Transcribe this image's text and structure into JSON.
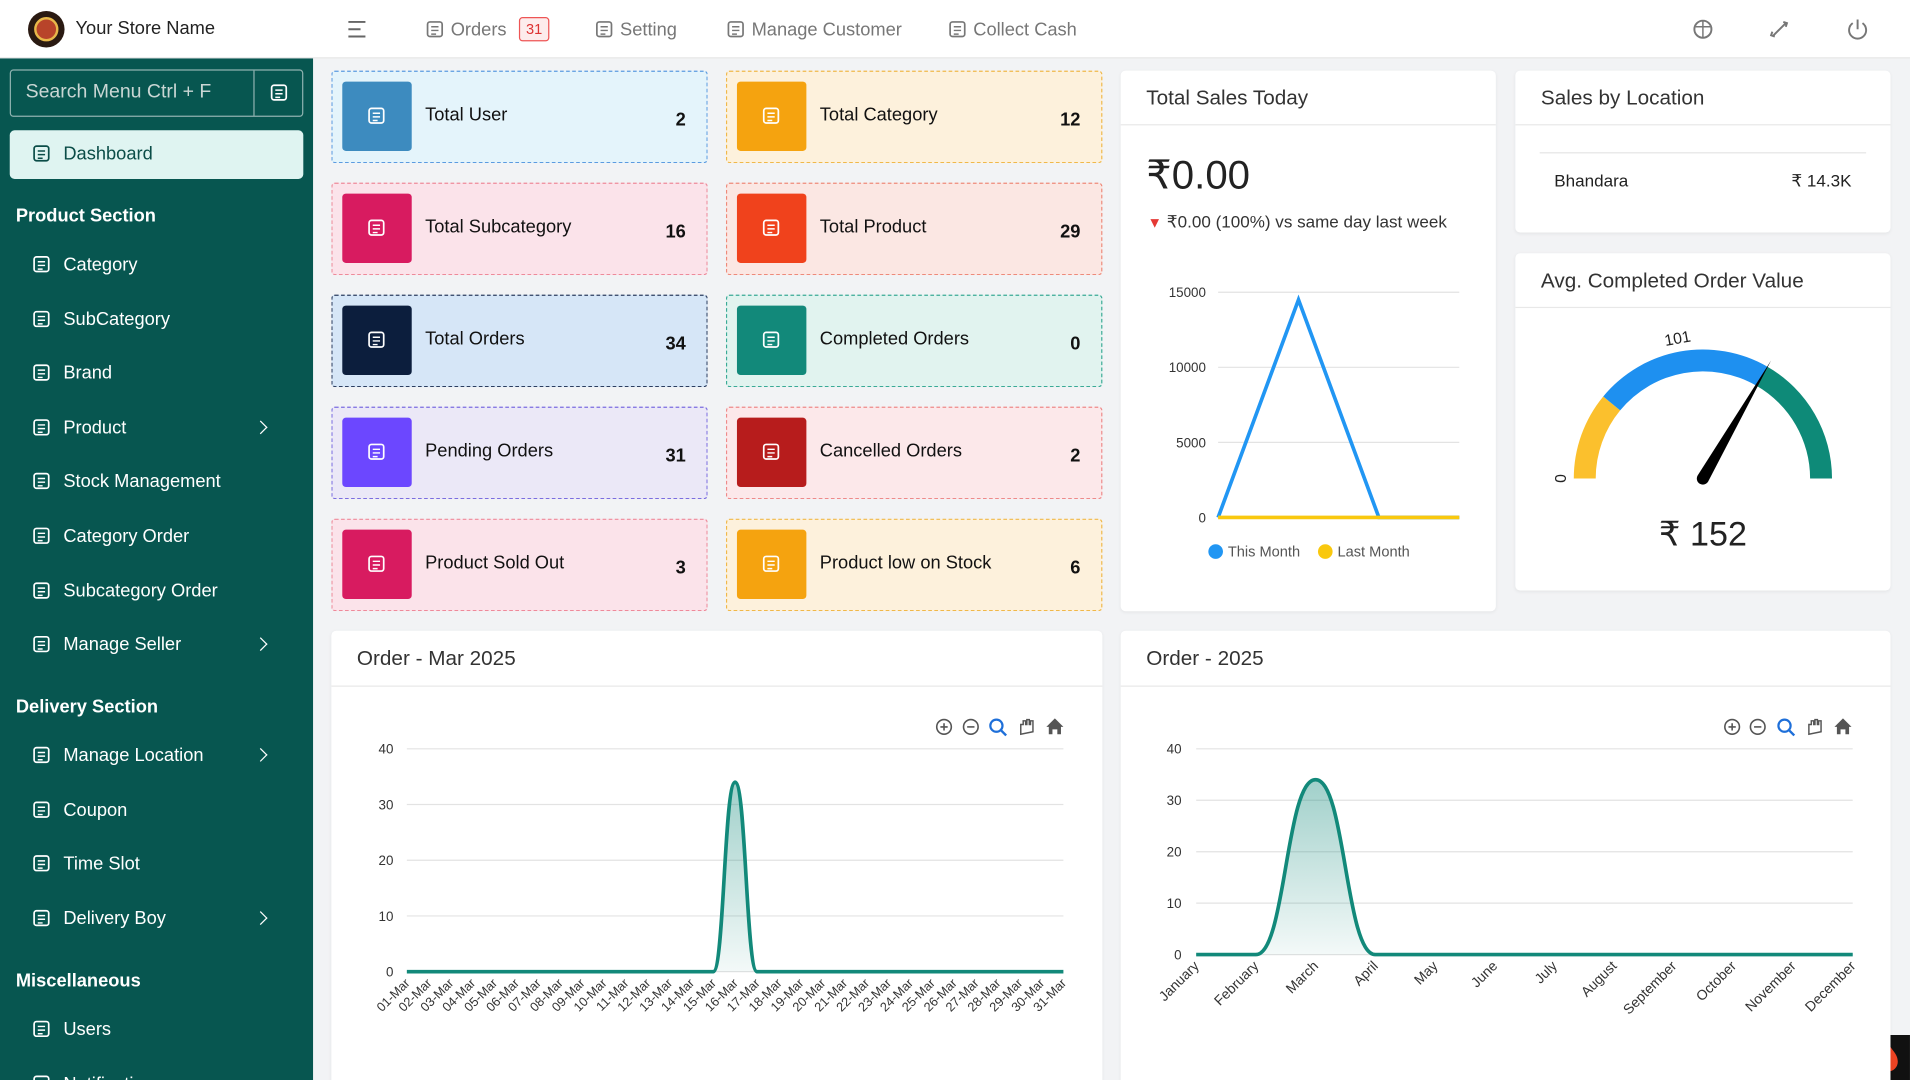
{
  "header": {
    "store_name": "Your Store Name",
    "nav": [
      {
        "label": "Orders",
        "badge": 31
      },
      {
        "label": "Setting"
      },
      {
        "label": "Manage Customer"
      },
      {
        "label": "Collect Cash"
      }
    ]
  },
  "sidebar": {
    "search_placeholder": "Search Menu Ctrl + F",
    "active_item": "Dashboard",
    "sections": [
      {
        "title": "Product Section",
        "items": [
          {
            "label": "Category"
          },
          {
            "label": "SubCategory"
          },
          {
            "label": "Brand"
          },
          {
            "label": "Product",
            "submenu": true
          },
          {
            "label": "Stock Management"
          },
          {
            "label": "Category Order"
          },
          {
            "label": "Subcategory Order"
          },
          {
            "label": "Manage Seller",
            "submenu": true
          }
        ]
      },
      {
        "title": "Delivery Section",
        "items": [
          {
            "label": "Manage Location",
            "submenu": true
          },
          {
            "label": "Coupon"
          },
          {
            "label": "Time Slot"
          },
          {
            "label": "Delivery Boy",
            "submenu": true
          }
        ]
      },
      {
        "title": "Miscellaneous",
        "items": [
          {
            "label": "Users"
          },
          {
            "label": "Notifications"
          }
        ]
      }
    ]
  },
  "stats": [
    {
      "label": "Total User",
      "value": 2,
      "icon_color": "#3d8bbf",
      "background": "#e4f4fb",
      "border": "#5b9be0"
    },
    {
      "label": "Total Category",
      "value": 12,
      "icon_color": "#f5a30f",
      "background": "#fdf1dc",
      "border": "#f0b84a"
    },
    {
      "label": "Total Subcategory",
      "value": 16,
      "icon_color": "#d81b60",
      "background": "#fbe3ea",
      "border": "#ee8a9a"
    },
    {
      "label": "Total Product",
      "value": 29,
      "icon_color": "#f0421c",
      "background": "#fbe7e3",
      "border": "#ee8a7a"
    },
    {
      "label": "Total Orders",
      "value": 34,
      "icon_color": "#0c1e3d",
      "background": "#d6e6f7",
      "border": "#2c3e60"
    },
    {
      "label": "Completed Orders",
      "value": 0,
      "icon_color": "#12897a",
      "background": "#e1f3ef",
      "border": "#3aaa96"
    },
    {
      "label": "Pending Orders",
      "value": 31,
      "icon_color": "#6c47ff",
      "background": "#ebe8f7",
      "border": "#7b6de0"
    },
    {
      "label": "Cancelled Orders",
      "value": 2,
      "icon_color": "#b71c1c",
      "background": "#fce8ea",
      "border": "#ee8a8a"
    },
    {
      "label": "Product Sold Out",
      "value": 3,
      "icon_color": "#d81b60",
      "background": "#fbe3ea",
      "border": "#ee8a9a"
    },
    {
      "label": "Product low on Stock",
      "value": 6,
      "icon_color": "#f5a30f",
      "background": "#fdf1dc",
      "border": "#f0b84a"
    }
  ],
  "sales_by_location": {
    "title": "Sales by Location",
    "rows": [
      {
        "name": "Bhandara",
        "amount": "₹ 14.3K"
      }
    ]
  },
  "chart_data": [
    {
      "type": "line",
      "title": "Total Sales Today",
      "amount": "₹0.00",
      "comparison": "₹0.00 (100%) vs same day last week",
      "categories": [
        null,
        null,
        null,
        null
      ],
      "series": [
        {
          "name": "This Month",
          "color": "#2196f3",
          "values": [
            0,
            14500,
            0,
            0
          ]
        },
        {
          "name": "Last Month",
          "color": "#f9c80e",
          "values": [
            0,
            0,
            0,
            0
          ]
        }
      ],
      "ylim": [
        0,
        15000
      ],
      "yticks": [
        0,
        5000,
        10000,
        15000
      ],
      "grid": true,
      "legend": "bottom"
    },
    {
      "type": "gauge",
      "title": "Avg. Completed Order Value",
      "value": 152,
      "value_label": "₹ 152",
      "range": [
        0,
        228
      ],
      "ticks": [
        0,
        101
      ],
      "bands": [
        {
          "from": 0,
          "to": 50,
          "color": "#fbc02d"
        },
        {
          "from": 50,
          "to": 152,
          "color": "#1e90f0"
        },
        {
          "from": 152,
          "to": 228,
          "color": "#0e8a78"
        }
      ]
    },
    {
      "type": "area",
      "title": "Order - Mar 2025",
      "categories": [
        "01-Mar",
        "02-Mar",
        "03-Mar",
        "04-Mar",
        "05-Mar",
        "06-Mar",
        "07-Mar",
        "08-Mar",
        "09-Mar",
        "10-Mar",
        "11-Mar",
        "12-Mar",
        "13-Mar",
        "14-Mar",
        "15-Mar",
        "16-Mar",
        "17-Mar",
        "18-Mar",
        "19-Mar",
        "20-Mar",
        "21-Mar",
        "22-Mar",
        "23-Mar",
        "24-Mar",
        "25-Mar",
        "26-Mar",
        "27-Mar",
        "28-Mar",
        "29-Mar",
        "30-Mar",
        "31-Mar"
      ],
      "values": [
        0,
        0,
        0,
        0,
        0,
        0,
        0,
        0,
        0,
        0,
        0,
        0,
        0,
        0,
        0,
        34,
        0,
        0,
        0,
        0,
        0,
        0,
        0,
        0,
        0,
        0,
        0,
        0,
        0,
        0,
        0
      ],
      "color": "#12897a",
      "ylim": [
        0,
        40
      ],
      "yticks": [
        0,
        10,
        20,
        30,
        40
      ],
      "grid": true
    },
    {
      "type": "area",
      "title": "Order - 2025",
      "categories": [
        "January",
        "February",
        "March",
        "April",
        "May",
        "June",
        "July",
        "August",
        "September",
        "October",
        "November",
        "December"
      ],
      "values": [
        0,
        0,
        34,
        0,
        0,
        0,
        0,
        0,
        0,
        0,
        0,
        0
      ],
      "color": "#12897a",
      "ylim": [
        0,
        40
      ],
      "yticks": [
        0,
        10,
        20,
        30,
        40
      ],
      "grid": true
    }
  ]
}
